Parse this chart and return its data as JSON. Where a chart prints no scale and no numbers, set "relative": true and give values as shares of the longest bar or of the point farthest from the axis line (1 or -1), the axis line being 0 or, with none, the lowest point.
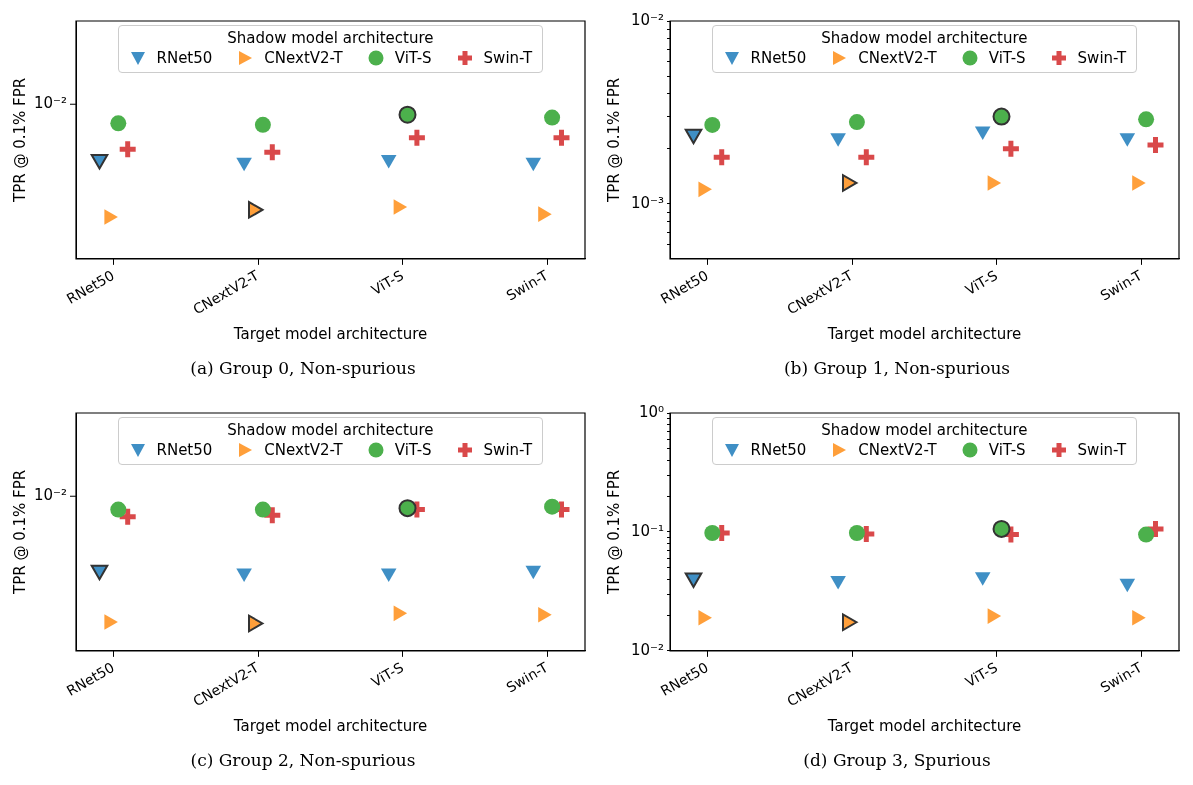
{
  "chart_data": [
    {
      "type": "scatter",
      "title": "(a) Group 0, Non-spurious",
      "xlabel": "Target model architecture",
      "ylabel": "TPR @ 0.1% FPR",
      "legend_title": "Shadow model architecture",
      "legend": "top",
      "relative": true,
      "annotations": [
        "10⁻²"
      ],
      "categories": [
        "RNet50",
        "CNextV2-T",
        "ViT-S",
        "Swin-T"
      ],
      "series": [
        {
          "name": "RNet50",
          "color": "#3f8fc5",
          "marker": "triangle_down",
          "values": [
            0.69,
            0.67,
            0.69,
            0.67
          ]
        },
        {
          "name": "CNextV2-T",
          "color": "#ff9f3a",
          "marker": "triangle_right",
          "values": [
            0.29,
            0.34,
            0.36,
            0.31
          ]
        },
        {
          "name": "ViT-S",
          "color": "#4cb04c",
          "marker": "circle",
          "values": [
            0.94,
            0.93,
            1,
            0.98
          ]
        },
        {
          "name": "Swin-T",
          "color": "#d9494a",
          "marker": "cross",
          "values": [
            0.76,
            0.74,
            0.84,
            0.84
          ]
        }
      ]
    },
    {
      "type": "scatter",
      "title": "(b) Group 1, Non-spurious",
      "xlabel": "Target model architecture",
      "ylabel": "TPR @ 0.1% FPR",
      "legend_title": "Shadow model architecture",
      "legend": "top",
      "log": true,
      "categories": [
        "RNet50",
        "CNextV2-T",
        "ViT-S",
        "Swin-T"
      ],
      "ylim": [
        0.0005,
        0.01
      ],
      "yticks": [
        {
          "value": 0.0006,
          "label": null
        },
        {
          "value": 0.0007,
          "label": null
        },
        {
          "value": 0.0008,
          "label": null
        },
        {
          "value": 0.0009,
          "label": null
        },
        {
          "value": 0.001,
          "label": "10⁻³"
        },
        {
          "value": 0.002,
          "label": null
        },
        {
          "value": 0.003,
          "label": null
        },
        {
          "value": 0.004,
          "label": null
        },
        {
          "value": 0.005,
          "label": null
        },
        {
          "value": 0.006,
          "label": null
        },
        {
          "value": 0.007,
          "label": null
        },
        {
          "value": 0.008,
          "label": null
        },
        {
          "value": 0.009,
          "label": null
        },
        {
          "value": 0.01,
          "label": "10⁻²"
        }
      ],
      "series": [
        {
          "name": "RNet50",
          "color": "#3f8fc5",
          "marker": "triangle_down",
          "values": [
            0.0024,
            0.0023,
            0.0025,
            0.0023
          ]
        },
        {
          "name": "CNextV2-T",
          "color": "#ff9f3a",
          "marker": "triangle_right",
          "values": [
            0.0012,
            0.0013,
            0.0013,
            0.0013
          ]
        },
        {
          "name": "ViT-S",
          "color": "#4cb04c",
          "marker": "circle",
          "values": [
            0.0027,
            0.0028,
            0.003,
            0.0029
          ]
        },
        {
          "name": "Swin-T",
          "color": "#d9494a",
          "marker": "cross",
          "values": [
            0.0018,
            0.0018,
            0.002,
            0.0021
          ]
        }
      ]
    },
    {
      "type": "scatter",
      "title": "(c) Group 2, Non-spurious",
      "xlabel": "Target model architecture",
      "ylabel": "TPR @ 0.1% FPR",
      "legend_title": "Shadow model architecture",
      "legend": "top",
      "relative": true,
      "annotations": [
        "10⁻²"
      ],
      "categories": [
        "RNet50",
        "CNextV2-T",
        "ViT-S",
        "Swin-T"
      ],
      "series": [
        {
          "name": "RNet50",
          "color": "#3f8fc5",
          "marker": "triangle_down",
          "values": [
            0.56,
            0.54,
            0.54,
            0.56
          ]
        },
        {
          "name": "CNextV2-T",
          "color": "#ff9f3a",
          "marker": "triangle_right",
          "values": [
            0.2,
            0.19,
            0.26,
            0.25
          ]
        },
        {
          "name": "ViT-S",
          "color": "#4cb04c",
          "marker": "circle",
          "values": [
            0.98,
            0.98,
            0.99,
            1
          ]
        },
        {
          "name": "Swin-T",
          "color": "#d9494a",
          "marker": "cross",
          "values": [
            0.93,
            0.94,
            0.98,
            0.98
          ]
        }
      ]
    },
    {
      "type": "scatter",
      "title": "(d) Group 3, Spurious",
      "xlabel": "Target model architecture",
      "ylabel": "TPR @ 0.1% FPR",
      "legend_title": "Shadow model architecture",
      "legend": "top",
      "log": true,
      "categories": [
        "RNet50",
        "CNextV2-T",
        "ViT-S",
        "Swin-T"
      ],
      "ylim": [
        0.01,
        1
      ],
      "yticks": [
        {
          "value": 0.01,
          "label": "10⁻²"
        },
        {
          "value": 0.02,
          "label": null
        },
        {
          "value": 0.03,
          "label": null
        },
        {
          "value": 0.04,
          "label": null
        },
        {
          "value": 0.05,
          "label": null
        },
        {
          "value": 0.06,
          "label": null
        },
        {
          "value": 0.07,
          "label": null
        },
        {
          "value": 0.08,
          "label": null
        },
        {
          "value": 0.09,
          "label": null
        },
        {
          "value": 0.1,
          "label": "10⁻¹"
        },
        {
          "value": 0.2,
          "label": null
        },
        {
          "value": 0.3,
          "label": null
        },
        {
          "value": 0.4,
          "label": null
        },
        {
          "value": 0.5,
          "label": null
        },
        {
          "value": 0.6,
          "label": null
        },
        {
          "value": 0.7,
          "label": null
        },
        {
          "value": 0.8,
          "label": null
        },
        {
          "value": 0.9,
          "label": null
        },
        {
          "value": 1,
          "label": "10⁰"
        }
      ],
      "series": [
        {
          "name": "RNet50",
          "color": "#3f8fc5",
          "marker": "triangle_down",
          "values": [
            0.041,
            0.039,
            0.042,
            0.037
          ]
        },
        {
          "name": "CNextV2-T",
          "color": "#ff9f3a",
          "marker": "triangle_right",
          "values": [
            0.019,
            0.0174,
            0.0196,
            0.019
          ]
        },
        {
          "name": "ViT-S",
          "color": "#4cb04c",
          "marker": "circle",
          "values": [
            0.098,
            0.098,
            0.106,
            0.095
          ]
        },
        {
          "name": "Swin-T",
          "color": "#d9494a",
          "marker": "cross",
          "values": [
            0.098,
            0.096,
            0.095,
            0.106
          ]
        }
      ]
    }
  ]
}
